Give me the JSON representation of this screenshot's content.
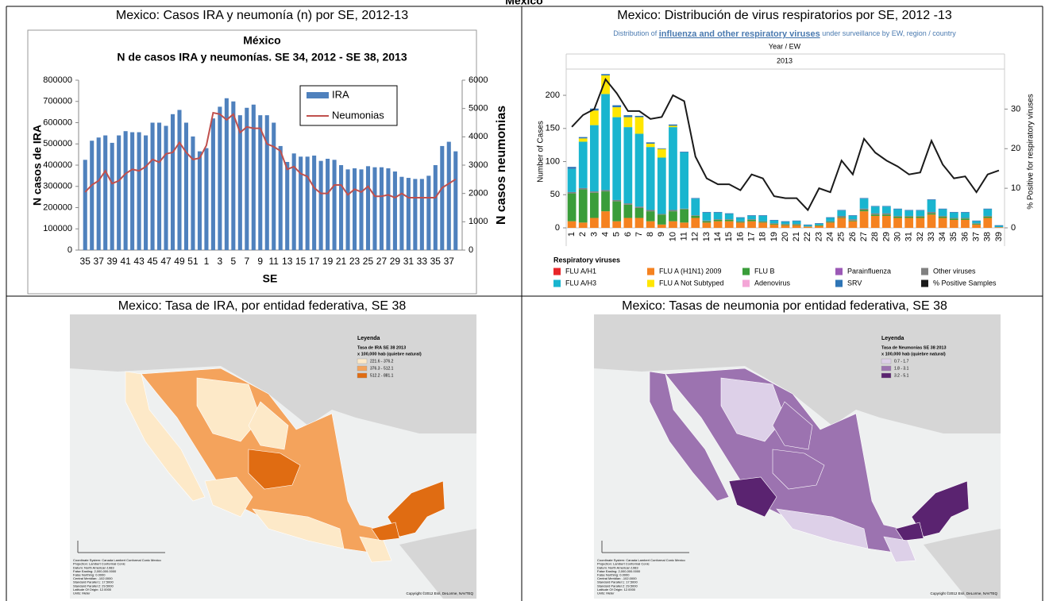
{
  "header": {
    "title": "Mexico"
  },
  "chart_data": [
    {
      "type": "bar",
      "title": "Mexico: Casos IRA y neumonía (n) por SE, 2012-13",
      "inner_title": [
        "México",
        "N de casos IRA y neumonías. SE 34, 2012 - SE 38, 2013"
      ],
      "y_label": "N casos de IRA",
      "y2_label": "N casos neumonias",
      "x_label": "SE",
      "categories": [
        "35",
        null,
        "37",
        null,
        "39",
        null,
        "41",
        null,
        "43",
        null,
        "45",
        null,
        "47",
        null,
        "49",
        null,
        "51",
        null,
        "1",
        null,
        "3",
        null,
        "5",
        null,
        "7",
        null,
        "9",
        null,
        "11",
        null,
        "13",
        null,
        "15",
        null,
        "17",
        null,
        "19",
        null,
        "21",
        null,
        "23",
        null,
        "25",
        null,
        "27",
        null,
        "29",
        null,
        "31",
        null,
        "33",
        null,
        "35",
        null,
        "37",
        null
      ],
      "series": [
        {
          "name": "IRA",
          "type": "bar",
          "color": "#4f81bd",
          "values": [
            425000,
            515000,
            530000,
            540000,
            505000,
            540000,
            560000,
            555000,
            555000,
            540000,
            600000,
            600000,
            585000,
            640000,
            660000,
            600000,
            535000,
            465000,
            480000,
            620000,
            675000,
            715000,
            700000,
            635000,
            670000,
            685000,
            635000,
            635000,
            600000,
            490000,
            415000,
            455000,
            440000,
            440000,
            445000,
            420000,
            430000,
            425000,
            400000,
            380000,
            385000,
            380000,
            395000,
            390000,
            390000,
            385000,
            370000,
            345000,
            340000,
            335000,
            335000,
            350000,
            400000,
            490000,
            510000,
            465000
          ]
        },
        {
          "name": "Neumonias",
          "type": "line",
          "axis": "y2",
          "color": "#c0504d",
          "values": [
            2050,
            2300,
            2450,
            2800,
            2350,
            2450,
            2700,
            2850,
            2800,
            2950,
            3200,
            3100,
            3400,
            3450,
            3800,
            3450,
            3200,
            3250,
            3700,
            4850,
            4800,
            4600,
            4800,
            4150,
            4350,
            4300,
            4300,
            3750,
            3650,
            3500,
            2850,
            2950,
            2700,
            2600,
            2200,
            2000,
            2000,
            2300,
            2300,
            1950,
            2150,
            2050,
            2250,
            1900,
            1900,
            1950,
            1850,
            2000,
            1850,
            1850,
            1850,
            1850,
            1850,
            2200,
            2350,
            2500
          ]
        }
      ],
      "ylim": [
        0,
        800000
      ],
      "yticks": [
        0,
        100000,
        200000,
        300000,
        400000,
        500000,
        600000,
        700000,
        800000
      ],
      "y2lim": [
        0,
        6000
      ],
      "y2ticks": [
        0,
        1000,
        2000,
        3000,
        4000,
        5000,
        6000
      ]
    },
    {
      "type": "stacked_bar",
      "title": "Mexico: Distribución de virus respiratorios por SE, 2012 -13",
      "subtitle": [
        "Distribution of ",
        "influenza and other respiratory viruses",
        " under surveillance by EW, region / country"
      ],
      "x_header": "Year / EW",
      "x_group": "2013",
      "y_label": "Number of Cases",
      "y2_label": "% Positive for respiratory viruses",
      "legend_title": "Respiratory viruses",
      "categories": [
        "1",
        "2",
        "3",
        "4",
        "5",
        "6",
        "7",
        "8",
        "9",
        "10",
        "11",
        "12",
        "13",
        "14",
        "15",
        "16",
        "17",
        "18",
        "19",
        "20",
        "21",
        "22",
        "23",
        "24",
        "25",
        "26",
        "27",
        "28",
        "29",
        "30",
        "31",
        "32",
        "33",
        "34",
        "35",
        "36",
        "37",
        "38",
        "39"
      ],
      "series": [
        {
          "name": "FLU A/H1",
          "color": "#e8262a",
          "values": [
            0,
            0,
            0,
            0,
            0,
            0,
            0,
            0,
            0,
            0,
            0,
            0,
            0,
            0,
            0,
            0,
            0,
            0,
            0,
            0,
            0,
            0,
            0,
            0,
            0,
            0,
            0,
            0,
            0,
            0,
            0,
            0,
            0,
            0,
            0,
            0,
            0,
            0,
            0
          ]
        },
        {
          "name": "FLU A (H1N1) 2009",
          "color": "#f58220",
          "values": [
            10,
            8,
            15,
            25,
            10,
            15,
            15,
            10,
            5,
            10,
            8,
            15,
            8,
            10,
            10,
            8,
            10,
            8,
            5,
            4,
            4,
            2,
            3,
            8,
            15,
            10,
            25,
            18,
            18,
            15,
            15,
            15,
            20,
            15,
            12,
            12,
            5,
            15,
            1
          ]
        },
        {
          "name": "FLU B",
          "color": "#3a9d3a",
          "values": [
            42,
            50,
            38,
            30,
            30,
            20,
            15,
            15,
            15,
            15,
            20,
            3,
            2,
            2,
            2,
            1,
            2,
            1,
            1,
            1,
            1,
            0,
            1,
            1,
            1,
            1,
            2,
            2,
            2,
            2,
            2,
            2,
            2,
            2,
            2,
            2,
            1,
            2,
            0
          ]
        },
        {
          "name": "Parainfluenza",
          "color": "#9b59b6",
          "values": [
            0,
            0,
            0,
            0,
            0,
            0,
            0,
            0,
            0,
            0,
            0,
            0,
            0,
            0,
            0,
            0,
            0,
            0,
            0,
            0,
            0,
            0,
            0,
            0,
            0,
            0,
            0,
            0,
            0,
            0,
            0,
            0,
            0,
            0,
            0,
            0,
            0,
            0,
            0
          ]
        },
        {
          "name": "Other viruses",
          "color": "#808080",
          "values": [
            2,
            2,
            2,
            2,
            2,
            2,
            2,
            2,
            1,
            2,
            1,
            1,
            1,
            1,
            1,
            1,
            1,
            1,
            1,
            1,
            1,
            0,
            0,
            1,
            2,
            2,
            2,
            2,
            2,
            1,
            1,
            1,
            2,
            1,
            1,
            1,
            1,
            1,
            0
          ]
        },
        {
          "name": "FLU A/H3",
          "color": "#19b5cf",
          "values": [
            35,
            70,
            100,
            145,
            125,
            115,
            110,
            95,
            85,
            125,
            85,
            25,
            12,
            10,
            8,
            5,
            5,
            8,
            4,
            3,
            4,
            2,
            2,
            5,
            8,
            5,
            15,
            10,
            10,
            10,
            8,
            8,
            18,
            10,
            8,
            8,
            3,
            10,
            2
          ]
        },
        {
          "name": "FLU A Not Subtyped",
          "color": "#ffe600",
          "values": [
            0,
            5,
            22,
            28,
            15,
            15,
            25,
            5,
            13,
            2,
            0,
            0,
            0,
            0,
            0,
            0,
            0,
            0,
            0,
            0,
            0,
            0,
            0,
            0,
            0,
            0,
            0,
            0,
            0,
            0,
            0,
            0,
            0,
            0,
            0,
            0,
            0,
            0,
            0
          ]
        },
        {
          "name": "Adenovirus",
          "color": "#f4a6d7",
          "values": [
            0,
            0,
            0,
            0,
            0,
            0,
            0,
            0,
            0,
            0,
            0,
            0,
            0,
            0,
            0,
            0,
            0,
            0,
            0,
            0,
            0,
            0,
            0,
            0,
            0,
            0,
            0,
            0,
            0,
            0,
            0,
            0,
            0,
            0,
            0,
            0,
            0,
            0,
            0
          ]
        },
        {
          "name": "SRV",
          "color": "#2e75b6",
          "values": [
            3,
            2,
            3,
            2,
            3,
            3,
            2,
            2,
            1,
            2,
            1,
            1,
            1,
            1,
            1,
            1,
            1,
            1,
            1,
            1,
            1,
            1,
            1,
            1,
            1,
            1,
            1,
            1,
            1,
            1,
            1,
            1,
            1,
            1,
            1,
            1,
            1,
            1,
            1
          ]
        },
        {
          "name": "% Positive Samples",
          "type": "line",
          "axis": "y2",
          "color": "#1a1a1a",
          "values": [
            25.5,
            28.5,
            30,
            37.5,
            34,
            29.5,
            29.5,
            27.5,
            28,
            33.5,
            32,
            18,
            12.5,
            11,
            11,
            9.5,
            13.5,
            12.5,
            8,
            7.5,
            7.5,
            4.5,
            10,
            9,
            17,
            13.5,
            22.5,
            19,
            17,
            15.5,
            13.5,
            14,
            22,
            16,
            12.5,
            13,
            9,
            13.5,
            14.5
          ]
        }
      ],
      "ylim": [
        0,
        230
      ],
      "yticks": [
        0,
        50,
        100,
        150,
        200
      ],
      "y2lim": [
        0,
        38.5
      ],
      "y2ticks": [
        0,
        10,
        20,
        30
      ]
    }
  ],
  "maps": [
    {
      "title": "Mexico: Tasa de IRA, por entidad federativa, SE 38",
      "legend": {
        "title": "Leyenda",
        "name": "Tasa de IRA SE 38 2013",
        "subtitle": "x 100,000 hab (quiebre natural)",
        "classes": [
          {
            "label": "221.6 - 376.2",
            "color": "#fde9c8"
          },
          {
            "label": "376.3 - 512.1",
            "color": "#f4a35c"
          },
          {
            "label": "512.2 - 881.1",
            "color": "#e06c12"
          }
        ]
      },
      "copyright": "Copyright ©2012 Esri, DeLorme, NAVTEQ"
    },
    {
      "title": "Mexico: Tasas de neumonia por entidad federativa, SE 38",
      "legend": {
        "title": "Leyenda",
        "name": "Tasa de Neumonias SE 38 2013",
        "subtitle": "x 100,000 hab (quiebre natural)",
        "classes": [
          {
            "label": "0.7 - 1.7",
            "color": "#ddd0e8"
          },
          {
            "label": "1.8 - 3.1",
            "color": "#9c73b0"
          },
          {
            "label": "3.2 - 5.1",
            "color": "#5a2370"
          }
        ]
      },
      "copyright": "Copyright ©2012 Esri, DeLorme, NAVTEQ"
    }
  ],
  "map_notes": [
    "Coordinate System: Canada Lambert Conformal Conic Mexico",
    "Projection: Lambert Conformal Conic",
    "Datum: North American 1983",
    "False Easting: 2,000,000.0000",
    "False Northing: 0.0000",
    "Central Meridian: -102.0000",
    "Standard Parallel 1: 17.5000",
    "Standard Parallel 2: 29.5000",
    "Latitude Of Origin: 12.0000",
    "Units: Meter"
  ]
}
